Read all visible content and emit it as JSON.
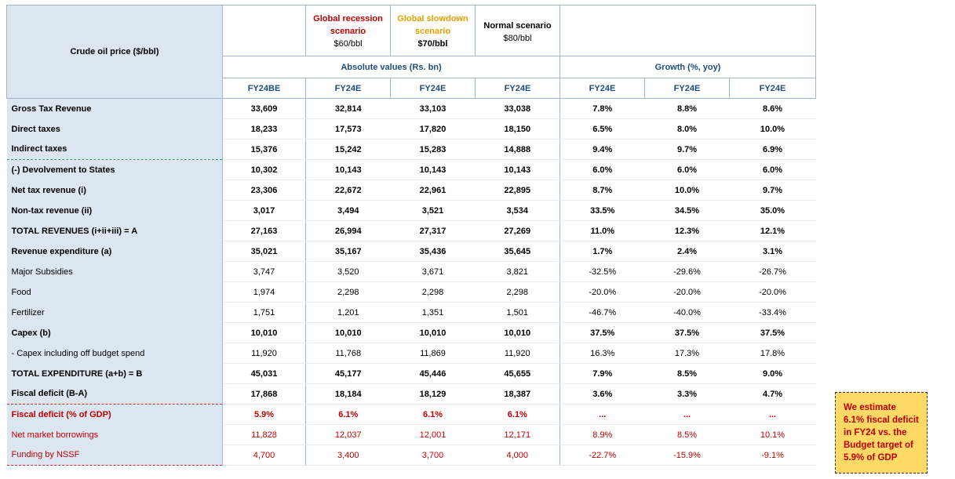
{
  "header": {
    "corner_label": "Crude oil price ($/bbl)",
    "scenarios": [
      {
        "name_line1": "Global recession",
        "name_line2": "scenario",
        "price": "$60/bbl",
        "color": "#c00000"
      },
      {
        "name_line1": "Global slowdown",
        "name_line2": "scenario",
        "price": "$70/bbl",
        "color": "#e5a100"
      },
      {
        "name_line1": "Normal scenario",
        "name_line2": "",
        "price": "$80/bbl",
        "color": "#000000"
      }
    ],
    "group_absolute": "Absolute values (Rs. bn)",
    "group_growth": "Growth (%, yoy)",
    "columns": [
      "FY24BE",
      "FY24E",
      "FY24E",
      "FY24E",
      "FY24E",
      "FY24E",
      "FY24E"
    ]
  },
  "rows": [
    {
      "label": "Gross Tax Revenue",
      "values": [
        "33,609",
        "32,814",
        "33,103",
        "33,038",
        "7.8%",
        "8.8%",
        "8.6%"
      ]
    },
    {
      "label": "Direct taxes",
      "values": [
        "18,233",
        "17,573",
        "17,820",
        "18,150",
        "6.5%",
        "8.0%",
        "10.0%"
      ]
    },
    {
      "label": "Indirect taxes",
      "values": [
        "15,376",
        "15,242",
        "15,283",
        "14,888",
        "9.4%",
        "9.7%",
        "6.9%"
      ]
    },
    {
      "label": "(-) Devolvement to States",
      "values": [
        "10,302",
        "10,143",
        "10,143",
        "10,143",
        "6.0%",
        "6.0%",
        "6.0%"
      ]
    },
    {
      "label": "Net tax revenue (i)",
      "values": [
        "23,306",
        "22,672",
        "22,961",
        "22,895",
        "8.7%",
        "10.0%",
        "9.7%"
      ]
    },
    {
      "label": "Non-tax revenue (ii)",
      "values": [
        "3,017",
        "3,494",
        "3,521",
        "3,534",
        "33.5%",
        "34.5%",
        "35.0%"
      ]
    },
    {
      "label": "TOTAL REVENUES (i+ii+iii) = A",
      "values": [
        "27,163",
        "26,994",
        "27,317",
        "27,269",
        "11.0%",
        "12.3%",
        "12.1%"
      ]
    },
    {
      "label": "Revenue expenditure (a)",
      "values": [
        "35,021",
        "35,167",
        "35,436",
        "35,645",
        "1.7%",
        "2.4%",
        "3.1%"
      ]
    },
    {
      "label": "Major Subsidies",
      "values": [
        "3,747",
        "3,520",
        "3,671",
        "3,821",
        "-32.5%",
        "-29.6%",
        "-26.7%"
      ]
    },
    {
      "label": "Food",
      "values": [
        "1,974",
        "2,298",
        "2,298",
        "2,298",
        "-20.0%",
        "-20.0%",
        "-20.0%"
      ]
    },
    {
      "label": "Fertilizer",
      "values": [
        "1,751",
        "1,201",
        "1,351",
        "1,501",
        "-46.7%",
        "-40.0%",
        "-33.4%"
      ]
    },
    {
      "label": "Capex (b)",
      "values": [
        "10,010",
        "10,010",
        "10,010",
        "10,010",
        "37.5%",
        "37.5%",
        "37.5%"
      ]
    },
    {
      "label": "- Capex including off budget spend",
      "values": [
        "11,920",
        "11,768",
        "11,869",
        "11,920",
        "16.3%",
        "17.3%",
        "17.8%"
      ]
    },
    {
      "label": "TOTAL EXPENDITURE (a+b) = B",
      "values": [
        "45,031",
        "45,177",
        "45,446",
        "45,655",
        "7.9%",
        "8.5%",
        "9.0%"
      ]
    },
    {
      "label": "Fiscal deficit (B-A)",
      "values": [
        "17,868",
        "18,184",
        "18,129",
        "18,387",
        "3.6%",
        "3.3%",
        "4.7%"
      ]
    },
    {
      "label": "Fiscal deficit (% of GDP)",
      "values": [
        "5.9%",
        "6.1%",
        "6.1%",
        "6.1%",
        "...",
        "...",
        "..."
      ]
    },
    {
      "label": "Net market borrowings",
      "values": [
        "11,828",
        "12,037",
        "12,001",
        "12,171",
        "8.9%",
        "8.5%",
        "10.1%"
      ]
    },
    {
      "label": "Funding by NSSF",
      "values": [
        "4,700",
        "3,400",
        "3,700",
        "4,000",
        "-22.7%",
        "-15.9%",
        "-9.1%"
      ]
    }
  ],
  "callout": {
    "lines": [
      "We estimate",
      "6.1% fiscal deficit",
      "in FY24 vs. the",
      "Budget target of",
      "5.9% of GDP"
    ]
  }
}
